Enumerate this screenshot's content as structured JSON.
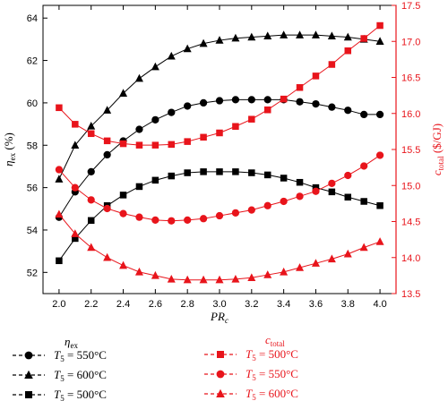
{
  "chart_data": {
    "type": "line",
    "x": [
      2.0,
      2.1,
      2.2,
      2.3,
      2.4,
      2.5,
      2.6,
      2.7,
      2.8,
      2.9,
      3.0,
      3.1,
      3.2,
      3.3,
      3.4,
      3.5,
      3.6,
      3.7,
      3.8,
      3.9,
      4.0
    ],
    "x_ticks": [
      "2.0",
      "2.2",
      "2.4",
      "2.6",
      "2.8",
      "3.0",
      "3.2",
      "3.4",
      "3.6",
      "3.8",
      "4.0"
    ],
    "xlim": [
      1.9,
      4.1
    ],
    "xlabel": {
      "main": "PR",
      "sub": "c"
    },
    "y_left": {
      "label": {
        "main": "η",
        "sub": "ex",
        "suffix": " (%)"
      },
      "lim": [
        51,
        64.6
      ],
      "ticks": [
        "52",
        "54",
        "56",
        "58",
        "60",
        "62",
        "64"
      ],
      "color": "#000000"
    },
    "y_right": {
      "label": {
        "main": "c",
        "sub": "total",
        "suffix": " ($/GJ)"
      },
      "lim": [
        13.5,
        17.5
      ],
      "ticks": [
        "13.5",
        "14.0",
        "14.5",
        "15.0",
        "15.5",
        "16.0",
        "16.5",
        "17.0",
        "17.5"
      ],
      "color": "#e8141b"
    },
    "series": [
      {
        "group": "eta",
        "axis": "left",
        "marker": "circle",
        "color": "#000000",
        "values": [
          54.6,
          55.8,
          56.75,
          57.55,
          58.2,
          58.75,
          59.2,
          59.55,
          59.85,
          60.0,
          60.1,
          60.15,
          60.15,
          60.15,
          60.15,
          60.05,
          59.95,
          59.8,
          59.65,
          59.45,
          59.45
        ]
      },
      {
        "group": "eta",
        "axis": "left",
        "marker": "triangle",
        "color": "#000000",
        "values": [
          56.4,
          58.0,
          58.9,
          59.65,
          60.45,
          61.15,
          61.7,
          62.2,
          62.55,
          62.8,
          62.95,
          63.05,
          63.1,
          63.15,
          63.2,
          63.2,
          63.2,
          63.15,
          63.1,
          63.0,
          62.9
        ]
      },
      {
        "group": "eta",
        "axis": "left",
        "marker": "square",
        "color": "#000000",
        "values": [
          52.55,
          53.6,
          54.45,
          55.15,
          55.65,
          56.05,
          56.35,
          56.55,
          56.7,
          56.75,
          56.75,
          56.75,
          56.7,
          56.6,
          56.45,
          56.25,
          56.0,
          55.8,
          55.55,
          55.35,
          55.15
        ]
      },
      {
        "group": "c",
        "axis": "right",
        "marker": "square",
        "color": "#e8141b",
        "values": [
          16.08,
          15.85,
          15.72,
          15.62,
          15.58,
          15.56,
          15.56,
          15.57,
          15.61,
          15.67,
          15.73,
          15.82,
          15.92,
          16.05,
          16.2,
          16.36,
          16.52,
          16.68,
          16.87,
          17.04,
          17.22
        ]
      },
      {
        "group": "c",
        "axis": "right",
        "marker": "circle",
        "color": "#e8141b",
        "values": [
          15.22,
          14.97,
          14.8,
          14.68,
          14.61,
          14.56,
          14.52,
          14.51,
          14.52,
          14.54,
          14.58,
          14.62,
          14.66,
          14.72,
          14.78,
          14.85,
          14.92,
          15.03,
          15.14,
          15.27,
          15.42
        ]
      },
      {
        "group": "c",
        "axis": "right",
        "marker": "triangle",
        "color": "#e8141b",
        "values": [
          14.6,
          14.33,
          14.14,
          14.0,
          13.89,
          13.8,
          13.75,
          13.7,
          13.69,
          13.69,
          13.69,
          13.7,
          13.72,
          13.76,
          13.8,
          13.86,
          13.92,
          13.98,
          14.05,
          14.14,
          14.22
        ]
      }
    ],
    "legend": {
      "placement": "bottom",
      "eta_title": {
        "main": "η",
        "sub": "ex"
      },
      "c_title": {
        "main": "c",
        "sub": "total"
      },
      "eta_entries": [
        {
          "marker": "circle",
          "var": "T",
          "sub": "5",
          "text": " = 550°C"
        },
        {
          "marker": "triangle",
          "var": "T",
          "sub": "5",
          "text": " = 600°C"
        },
        {
          "marker": "square",
          "var": "T",
          "sub": "5",
          "text": " = 500°C"
        }
      ],
      "c_entries": [
        {
          "marker": "square",
          "var": "T",
          "sub": "5",
          "text": " = 500°C"
        },
        {
          "marker": "circle",
          "var": "T",
          "sub": "5",
          "text": " = 550°C"
        },
        {
          "marker": "triangle",
          "var": "T",
          "sub": "5",
          "text": " = 600°C"
        }
      ]
    },
    "grid": false
  }
}
